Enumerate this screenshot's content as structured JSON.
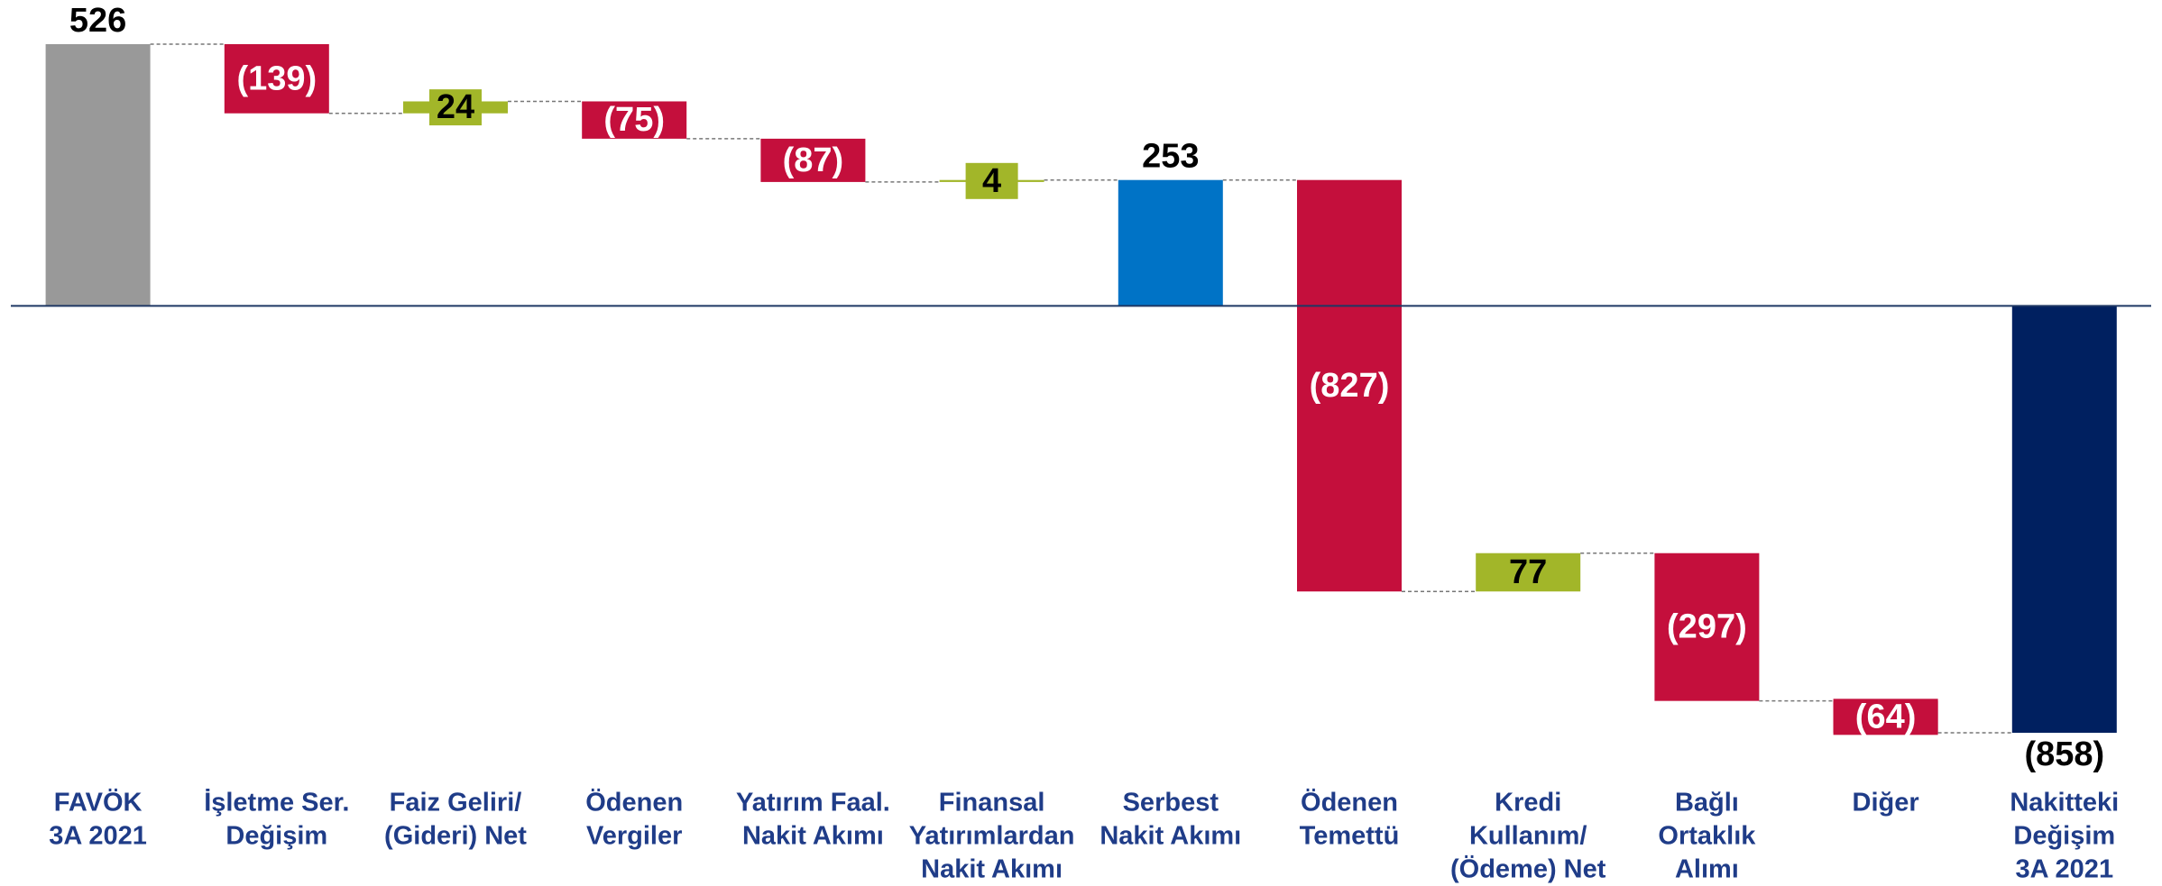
{
  "chart_data": {
    "type": "waterfall",
    "categories": [
      [
        "FAVÖK",
        "3A 2021"
      ],
      [
        "İşletme Ser.",
        "Değişim"
      ],
      [
        "Faiz Geliri/",
        "(Gideri) Net"
      ],
      [
        "Ödenen",
        "Vergiler"
      ],
      [
        "Yatırım Faal.",
        "Nakit Akımı"
      ],
      [
        "Finansal",
        "Yatırımlardan",
        "Nakit Akımı"
      ],
      [
        "Serbest",
        "Nakit Akımı"
      ],
      [
        "Ödenen",
        "Temettü"
      ],
      [
        "Kredi",
        "Kullanım/",
        "(Ödeme) Net"
      ],
      [
        "Bağlı",
        "Ortaklık",
        "Alımı"
      ],
      [
        "Diğer"
      ],
      [
        "Nakitteki",
        "Değişim",
        "3A 2021"
      ]
    ],
    "values": [
      526,
      -139,
      24,
      -75,
      -87,
      4,
      253,
      -827,
      77,
      -297,
      -64,
      -858
    ],
    "value_labels": [
      "526",
      "(139)",
      "24",
      "(75)",
      "(87)",
      "4",
      "253",
      "(827)",
      "77",
      "(297)",
      "(64)",
      "(858)"
    ],
    "measure": [
      "absolute",
      "relative",
      "relative",
      "relative",
      "relative",
      "relative",
      "absolute",
      "relative",
      "relative",
      "relative",
      "relative",
      "absolute"
    ],
    "colors": [
      "#999999",
      "#c40f3c",
      "#a2b629",
      "#c40f3c",
      "#c40f3c",
      "#a2b629",
      "#0073c6",
      "#c40f3c",
      "#a2b629",
      "#c40f3c",
      "#c40f3c",
      "#002060"
    ]
  }
}
